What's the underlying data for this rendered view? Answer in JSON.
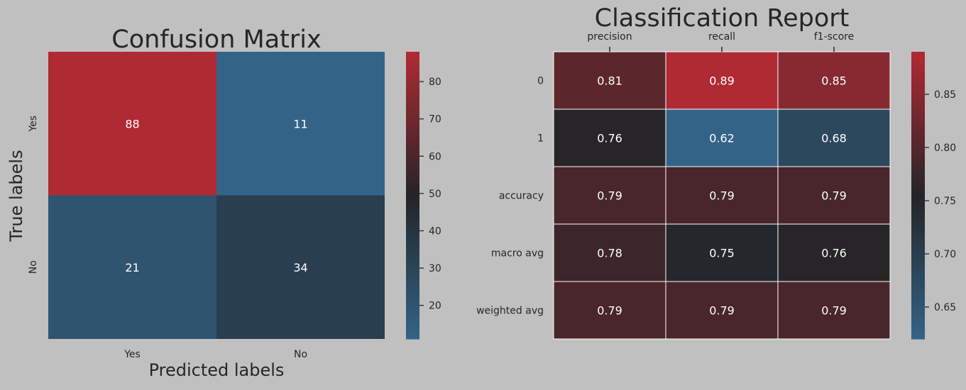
{
  "chart_data": [
    {
      "type": "heatmap",
      "title": "Confusion Matrix",
      "xlabel": "Predicted labels",
      "ylabel": "True labels",
      "x_tick_labels": [
        "Yes",
        "No"
      ],
      "y_tick_labels": [
        "Yes",
        "No"
      ],
      "values": [
        [
          88,
          11
        ],
        [
          21,
          34
        ]
      ],
      "colorbar": {
        "range": [
          11,
          88
        ],
        "ticks": [
          "80",
          "70",
          "60",
          "50",
          "40",
          "30",
          "20"
        ]
      },
      "colormap": {
        "low": "#336488",
        "mid": "#232528",
        "high": "#b02a33"
      },
      "text_color": "#ffffff"
    },
    {
      "type": "heatmap",
      "title": "Classification Report",
      "xlabel": "",
      "ylabel": "",
      "x_tick_labels": [
        "precision",
        "recall",
        "f1-score"
      ],
      "y_tick_labels": [
        "0",
        "1",
        "accuracy",
        "macro avg",
        "weighted avg"
      ],
      "values": [
        [
          0.81,
          0.89,
          0.85
        ],
        [
          0.76,
          0.62,
          0.68
        ],
        [
          0.79,
          0.79,
          0.79
        ],
        [
          0.78,
          0.75,
          0.76
        ],
        [
          0.79,
          0.79,
          0.79
        ]
      ],
      "cell_labels": [
        [
          "0.81",
          "0.89",
          "0.85"
        ],
        [
          "0.76",
          "0.62",
          "0.68"
        ],
        [
          "0.79",
          "0.79",
          "0.79"
        ],
        [
          "0.78",
          "0.75",
          "0.76"
        ],
        [
          "0.79",
          "0.79",
          "0.79"
        ]
      ],
      "grid_lines": true,
      "x_ticks_position": "top",
      "colorbar": {
        "range": [
          0.62,
          0.89
        ],
        "ticks": [
          "0.85",
          "0.80",
          "0.75",
          "0.70",
          "0.65"
        ]
      },
      "colormap": {
        "low": "#336488",
        "mid": "#232528",
        "high": "#b02a33"
      },
      "text_color": "#ffffff"
    }
  ],
  "colors": {
    "background": "#c0c0c0",
    "text": "#262626",
    "grid": "#ffffff"
  }
}
